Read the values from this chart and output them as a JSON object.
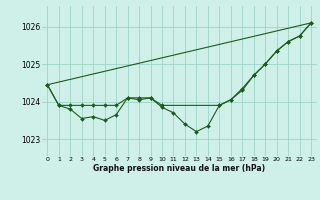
{
  "title": "Graphe pression niveau de la mer (hPa)",
  "bg_color": "#cff0e8",
  "grid_color": "#9dd4c8",
  "line_color": "#1a5c1a",
  "xlim": [
    -0.5,
    23.5
  ],
  "ylim": [
    1022.55,
    1026.55
  ],
  "yticks": [
    1023,
    1024,
    1025,
    1026
  ],
  "xtick_labels": [
    "0",
    "1",
    "2",
    "3",
    "4",
    "5",
    "6",
    "7",
    "8",
    "9",
    "10",
    "11",
    "12",
    "13",
    "14",
    "15",
    "16",
    "17",
    "18",
    "19",
    "20",
    "21",
    "22",
    "23"
  ],
  "series_zigzag": {
    "x": [
      0,
      1,
      2,
      3,
      4,
      5,
      6,
      7,
      8,
      9,
      10,
      11,
      12,
      13,
      14,
      15,
      16,
      17,
      18,
      19,
      20,
      21,
      22,
      23
    ],
    "y": [
      1024.45,
      1023.9,
      1023.8,
      1023.55,
      1023.6,
      1023.5,
      1023.65,
      1024.1,
      1024.05,
      1024.1,
      1023.85,
      1023.7,
      1023.4,
      1023.2,
      1023.35,
      1023.9,
      1024.05,
      1024.3,
      1024.7,
      1025.0,
      1025.35,
      1025.6,
      1025.75,
      1026.1
    ]
  },
  "series_smooth": {
    "x": [
      0,
      1,
      2,
      3,
      4,
      5,
      6,
      7,
      8,
      9,
      10,
      15,
      16,
      17,
      18,
      19,
      20,
      21,
      22,
      23
    ],
    "y": [
      1024.45,
      1023.9,
      1023.9,
      1023.9,
      1023.9,
      1023.9,
      1023.9,
      1024.1,
      1024.1,
      1024.1,
      1023.9,
      1023.9,
      1024.05,
      1024.35,
      1024.7,
      1025.0,
      1025.35,
      1025.6,
      1025.75,
      1026.1
    ]
  },
  "series_line": {
    "x": [
      0,
      23
    ],
    "y": [
      1024.45,
      1026.1
    ]
  }
}
